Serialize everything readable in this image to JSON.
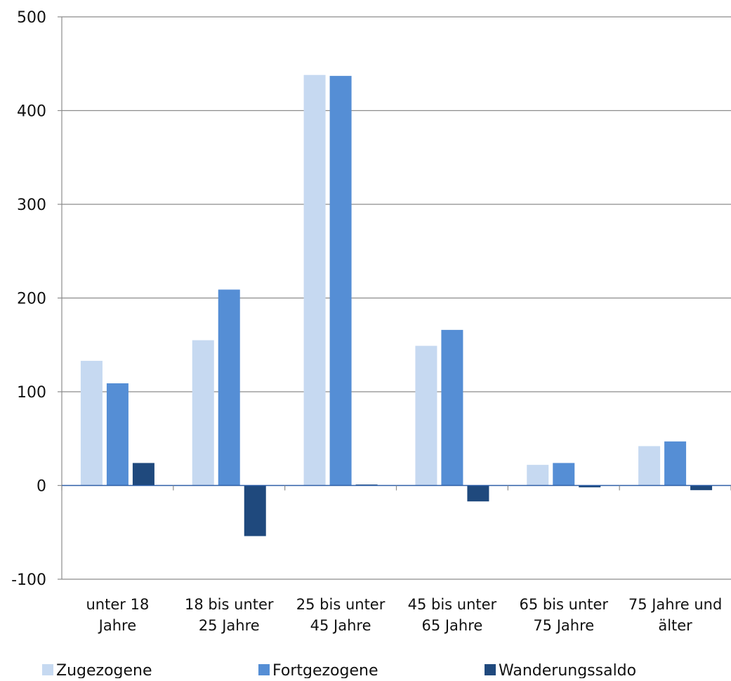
{
  "chart_data": {
    "type": "bar",
    "title": "",
    "xlabel": "",
    "ylabel": "",
    "ylim": [
      -100,
      500
    ],
    "yticks": [
      -100,
      0,
      100,
      200,
      300,
      400,
      500
    ],
    "grid": true,
    "legend_position": "bottom",
    "categories": [
      [
        "unter 18",
        "Jahre"
      ],
      [
        "18 bis unter",
        "25 Jahre"
      ],
      [
        "25 bis unter",
        "45 Jahre"
      ],
      [
        "45 bis unter",
        "65 Jahre"
      ],
      [
        "65 bis unter",
        "75 Jahre"
      ],
      [
        "75 Jahre und",
        "älter"
      ]
    ],
    "series": [
      {
        "name": "Zugezogene",
        "color": "#c6d9f1",
        "values": [
          133,
          155,
          438,
          149,
          22,
          42
        ]
      },
      {
        "name": "Fortgezogene",
        "color": "#558ed5",
        "values": [
          109,
          209,
          437,
          166,
          24,
          47
        ]
      },
      {
        "name": "Wanderungssaldo",
        "color": "#1f497d",
        "values": [
          24,
          -54,
          1,
          -17,
          -2,
          -5
        ]
      }
    ]
  }
}
